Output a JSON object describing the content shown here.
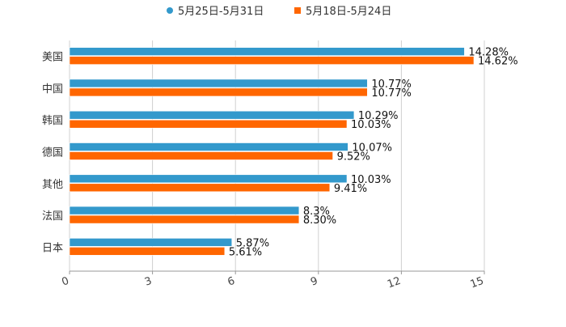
{
  "chart_data": {
    "type": "bar",
    "orientation": "horizontal",
    "title": "",
    "xlabel": "",
    "ylabel": "",
    "categories": [
      "美国",
      "中国",
      "韩国",
      "德国",
      "其他",
      "法国",
      "日本"
    ],
    "series": [
      {
        "name": "5月25日-5月31日",
        "color": "#3399cc",
        "marker": "circle",
        "values": [
          14.28,
          10.77,
          10.29,
          10.07,
          10.03,
          8.3,
          5.87
        ],
        "labels": [
          "14.28%",
          "10.77%",
          "10.29%",
          "10.07%",
          "10.03%",
          "8.3%",
          "5.87%"
        ]
      },
      {
        "name": "5月18日-5月24日",
        "color": "#ff6600",
        "marker": "square",
        "values": [
          14.62,
          10.77,
          10.03,
          9.52,
          9.41,
          8.3,
          5.61
        ],
        "labels": [
          "14.62%",
          "10.77%",
          "10.03%",
          "9.52%",
          "9.41%",
          "8.30%",
          "5.61%"
        ]
      }
    ],
    "xlim": [
      0,
      15
    ],
    "xticks": [
      "0",
      "3",
      "6",
      "9",
      "12",
      "15"
    ],
    "xtick_values": [
      0,
      3,
      6,
      9,
      12,
      15
    ],
    "grid": true,
    "legend_position": "top-center"
  }
}
